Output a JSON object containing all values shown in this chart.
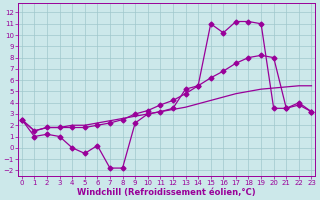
{
  "bg_color": "#cce8ea",
  "line_color": "#990099",
  "grid_color": "#a0c8cc",
  "xlabel": "Windchill (Refroidissement éolien,°C)",
  "ytick_vals": [
    -2,
    -1,
    0,
    1,
    2,
    3,
    4,
    5,
    6,
    7,
    8,
    9,
    10,
    11,
    12
  ],
  "xtick_vals": [
    0,
    1,
    2,
    3,
    4,
    5,
    6,
    7,
    8,
    9,
    10,
    11,
    12,
    13,
    14,
    15,
    16,
    17,
    18,
    19,
    20,
    21,
    22,
    23
  ],
  "xlim": [
    -0.3,
    23.3
  ],
  "ylim": [
    -2.5,
    12.8
  ],
  "line1_x": [
    0,
    1,
    2,
    3,
    4,
    5,
    6,
    7,
    8,
    9,
    10,
    11,
    12,
    13,
    14,
    15,
    16,
    17,
    18,
    19,
    20,
    21,
    22,
    23
  ],
  "line1_y": [
    2.5,
    1.0,
    1.2,
    1.0,
    0.0,
    -0.5,
    0.2,
    -1.8,
    -1.8,
    2.2,
    3.0,
    3.2,
    3.5,
    5.2,
    5.5,
    11.0,
    10.2,
    11.2,
    11.2,
    11.0,
    3.5,
    3.5,
    4.0,
    3.2
  ],
  "line2_x": [
    0,
    1,
    2,
    3,
    4,
    5,
    6,
    7,
    8,
    9,
    10,
    11,
    12,
    13,
    14,
    15,
    16,
    17,
    18,
    19,
    20,
    21,
    22,
    23
  ],
  "line2_y": [
    2.5,
    1.5,
    1.8,
    1.8,
    1.8,
    1.8,
    2.0,
    2.2,
    2.5,
    3.0,
    3.3,
    3.8,
    4.2,
    4.8,
    5.5,
    6.2,
    6.8,
    7.5,
    8.0,
    8.2,
    8.0,
    3.5,
    3.8,
    3.2
  ],
  "line3_x": [
    0,
    1,
    2,
    3,
    4,
    5,
    6,
    7,
    8,
    9,
    10,
    11,
    12,
    13,
    14,
    15,
    16,
    17,
    18,
    19,
    20,
    21,
    22,
    23
  ],
  "line3_y": [
    2.5,
    1.5,
    1.8,
    1.8,
    2.0,
    2.0,
    2.2,
    2.4,
    2.6,
    2.8,
    3.0,
    3.2,
    3.4,
    3.6,
    3.9,
    4.2,
    4.5,
    4.8,
    5.0,
    5.2,
    5.3,
    5.4,
    5.5,
    5.5
  ],
  "line1_marker": "D",
  "line2_marker": "D",
  "line3_marker": null,
  "marker_size": 2.5,
  "line_width": 0.9,
  "tick_fontsize": 5.0,
  "label_fontsize": 6.0
}
